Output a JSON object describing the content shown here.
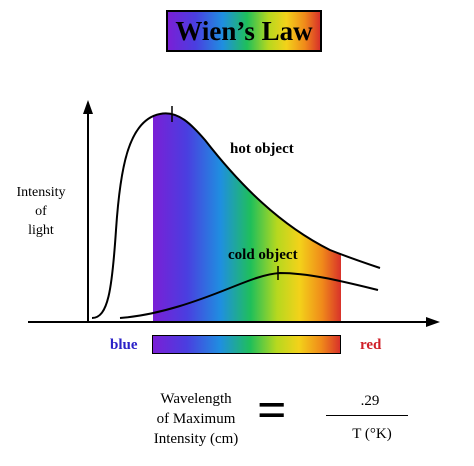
{
  "title": "Wien’s Law",
  "y_axis_label_lines": [
    "Intensity",
    "of",
    "light"
  ],
  "curves": {
    "hot_label": "hot object",
    "cold_label": "cold object"
  },
  "spectrum": {
    "left_label": "blue",
    "right_label": "red"
  },
  "formula": {
    "lhs_lines": [
      "Wavelength",
      "of Maximum",
      "Intensity (cm)"
    ],
    "equals": "=",
    "numerator": ".29",
    "denominator": "T (°K)"
  },
  "colors": {
    "blue_label": "#2b22c8",
    "red_label": "#d01f28"
  }
}
